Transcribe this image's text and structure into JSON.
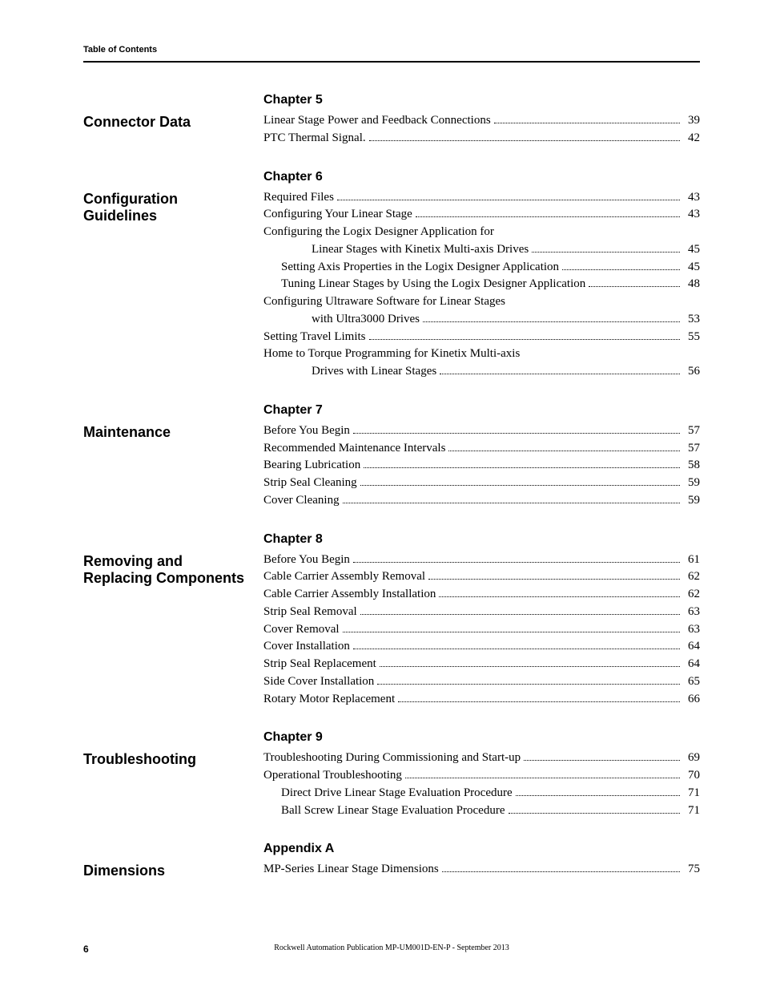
{
  "header": {
    "label": "Table of Contents"
  },
  "footer": {
    "page_number": "6",
    "publication": "Rockwell Automation Publication MP-UM001D-EN-P - September 2013"
  },
  "sections": [
    {
      "chapter": "Chapter 5",
      "title": "Connector Data",
      "entries": [
        {
          "label": "Linear Stage Power and Feedback Connections",
          "page": "39",
          "indent": 0
        },
        {
          "label": "PTC Thermal Signal.",
          "page": "42",
          "indent": 0
        }
      ]
    },
    {
      "chapter": "Chapter 6",
      "title": "Configuration Guidelines",
      "entries": [
        {
          "label": "Required Files",
          "page": "43",
          "indent": 0
        },
        {
          "label": "Configuring Your Linear Stage",
          "page": "43",
          "indent": 0
        },
        {
          "label": "Configuring the Logix Designer Application for",
          "page": "",
          "indent": 0,
          "no_page": true
        },
        {
          "label": "Linear Stages with Kinetix Multi-axis Drives",
          "page": "45",
          "indent": 2
        },
        {
          "label": "Setting Axis Properties in the Logix Designer Application",
          "page": "45",
          "indent": 1
        },
        {
          "label": "Tuning Linear Stages by Using the Logix Designer Application",
          "page": "48",
          "indent": 1
        },
        {
          "label": "Configuring Ultraware Software for Linear Stages",
          "page": "",
          "indent": 0,
          "no_page": true
        },
        {
          "label": "with Ultra3000 Drives",
          "page": "53",
          "indent": 2
        },
        {
          "label": "Setting Travel Limits",
          "page": "55",
          "indent": 0
        },
        {
          "label": "Home to Torque Programming for Kinetix Multi-axis",
          "page": "",
          "indent": 0,
          "no_page": true
        },
        {
          "label": "Drives with Linear Stages",
          "page": "56",
          "indent": 2
        }
      ]
    },
    {
      "chapter": "Chapter 7",
      "title": "Maintenance",
      "entries": [
        {
          "label": "Before You Begin",
          "page": "57",
          "indent": 0
        },
        {
          "label": "Recommended Maintenance Intervals",
          "page": "57",
          "indent": 0
        },
        {
          "label": "Bearing Lubrication",
          "page": "58",
          "indent": 0
        },
        {
          "label": "Strip Seal Cleaning",
          "page": "59",
          "indent": 0
        },
        {
          "label": "Cover Cleaning",
          "page": "59",
          "indent": 0
        }
      ]
    },
    {
      "chapter": "Chapter 8",
      "title": "Removing and Replacing Components",
      "entries": [
        {
          "label": "Before You Begin",
          "page": "61",
          "indent": 0
        },
        {
          "label": "Cable Carrier Assembly Removal",
          "page": "62",
          "indent": 0
        },
        {
          "label": "Cable Carrier Assembly Installation",
          "page": "62",
          "indent": 0
        },
        {
          "label": "Strip Seal Removal",
          "page": "63",
          "indent": 0
        },
        {
          "label": "Cover Removal",
          "page": "63",
          "indent": 0
        },
        {
          "label": "Cover Installation",
          "page": "64",
          "indent": 0
        },
        {
          "label": "Strip Seal Replacement",
          "page": "64",
          "indent": 0
        },
        {
          "label": "Side Cover Installation",
          "page": "65",
          "indent": 0
        },
        {
          "label": "Rotary Motor Replacement",
          "page": "66",
          "indent": 0
        }
      ]
    },
    {
      "chapter": "Chapter 9",
      "title": "Troubleshooting",
      "entries": [
        {
          "label": "Troubleshooting During Commissioning and Start-up",
          "page": "69",
          "indent": 0
        },
        {
          "label": "Operational Troubleshooting",
          "page": "70",
          "indent": 0
        },
        {
          "label": "Direct Drive Linear Stage Evaluation Procedure",
          "page": "71",
          "indent": 1
        },
        {
          "label": "Ball Screw Linear Stage Evaluation Procedure",
          "page": "71",
          "indent": 1
        }
      ]
    },
    {
      "chapter": "Appendix A",
      "title": "Dimensions",
      "entries": [
        {
          "label": "MP-Series Linear Stage Dimensions",
          "page": "75",
          "indent": 0
        }
      ]
    }
  ]
}
